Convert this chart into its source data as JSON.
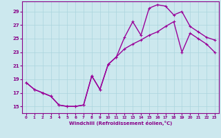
{
  "xlabel": "Windchill (Refroidissement éolien,°C)",
  "bg_color": "#cce8ee",
  "line_color": "#990099",
  "markersize": 2.5,
  "linewidth": 1.0,
  "xlim": [
    -0.5,
    23.5
  ],
  "ylim": [
    14.0,
    30.5
  ],
  "xticks": [
    0,
    1,
    2,
    3,
    4,
    5,
    6,
    7,
    8,
    9,
    10,
    11,
    12,
    13,
    14,
    15,
    16,
    17,
    18,
    19,
    20,
    21,
    22,
    23
  ],
  "yticks": [
    15,
    17,
    19,
    21,
    23,
    25,
    27,
    29
  ],
  "grid_color": "#aad4dd",
  "font_color": "#880088",
  "upper_x": [
    0,
    1,
    2,
    3,
    4,
    5,
    6,
    7,
    8,
    9,
    10,
    11,
    12,
    13,
    14,
    15,
    16,
    17,
    18,
    19,
    20,
    21,
    22,
    23
  ],
  "upper_y": [
    18.5,
    17.5,
    17.0,
    16.5,
    15.2,
    15.0,
    15.0,
    15.2,
    19.5,
    17.5,
    21.2,
    22.3,
    25.2,
    27.5,
    25.5,
    29.5,
    30.0,
    29.8,
    28.5,
    29.0,
    26.8,
    26.0,
    25.2,
    24.8
  ],
  "lower_x": [
    0,
    1,
    2,
    3,
    4,
    5,
    6,
    7,
    8,
    9,
    10,
    11,
    12,
    13,
    14,
    15,
    16,
    17,
    18,
    19,
    20,
    21,
    22,
    23
  ],
  "lower_y": [
    18.5,
    17.5,
    17.0,
    16.5,
    15.2,
    15.0,
    15.0,
    15.2,
    19.5,
    17.5,
    21.2,
    22.3,
    23.5,
    24.2,
    24.8,
    25.5,
    26.0,
    26.8,
    27.5,
    23.0,
    25.8,
    25.0,
    24.2,
    23.0
  ]
}
